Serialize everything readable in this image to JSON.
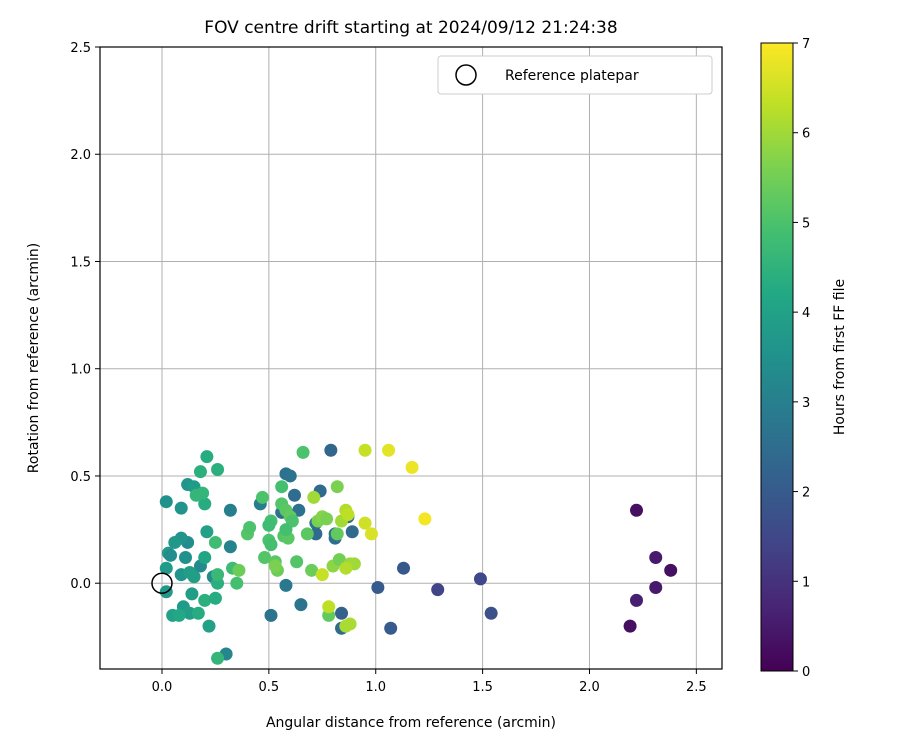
{
  "chart_data": {
    "type": "scatter",
    "title": "FOV centre drift starting at 2024/09/12 21:24:38",
    "xlabel": "Angular distance from reference (arcmin)",
    "ylabel": "Rotation from reference (arcmin)",
    "xlim": [
      -0.29,
      2.62
    ],
    "ylim": [
      -0.4,
      2.5
    ],
    "xticks": [
      "0.0",
      "0.5",
      "1.0",
      "1.5",
      "2.0",
      "2.5"
    ],
    "yticks": [
      "0.0",
      "0.5",
      "1.0",
      "1.5",
      "2.0",
      "2.5"
    ],
    "grid": true,
    "legend": {
      "placement": "top-right",
      "entry": "Reference platepar"
    },
    "reference_point": {
      "x": 0.0,
      "y": 0.0
    },
    "colorbar": {
      "label": "Hours from first FF file",
      "range": [
        0,
        7
      ],
      "ticks": [
        "0",
        "1",
        "2",
        "3",
        "4",
        "5",
        "6",
        "7"
      ],
      "colormap": "viridis"
    },
    "points": [
      [
        2.22,
        0.34,
        0.3
      ],
      [
        2.38,
        0.06,
        0.3
      ],
      [
        2.31,
        0.12,
        0.5
      ],
      [
        2.31,
        -0.02,
        0.5
      ],
      [
        2.22,
        -0.08,
        0.6
      ],
      [
        2.19,
        -0.2,
        0.3
      ],
      [
        1.49,
        0.02,
        1.5
      ],
      [
        1.54,
        -0.14,
        1.7
      ],
      [
        1.29,
        -0.03,
        1.4
      ],
      [
        1.13,
        0.07,
        1.9
      ],
      [
        1.07,
        -0.21,
        2.0
      ],
      [
        1.01,
        -0.02,
        2.0
      ],
      [
        0.79,
        0.62,
        2.3
      ],
      [
        0.84,
        -0.14,
        2.2
      ],
      [
        0.84,
        -0.21,
        2.4
      ],
      [
        0.74,
        0.43,
        2.4
      ],
      [
        0.62,
        0.41,
        2.5
      ],
      [
        0.58,
        0.51,
        2.6
      ],
      [
        0.6,
        0.5,
        2.7
      ],
      [
        0.56,
        0.33,
        2.6
      ],
      [
        0.64,
        0.34,
        2.6
      ],
      [
        0.72,
        0.28,
        2.7
      ],
      [
        0.72,
        0.23,
        2.4
      ],
      [
        0.81,
        0.21,
        2.5
      ],
      [
        0.81,
        0.23,
        2.6
      ],
      [
        0.87,
        0.31,
        2.5
      ],
      [
        0.89,
        0.24,
        2.4
      ],
      [
        0.65,
        -0.1,
        2.7
      ],
      [
        0.51,
        -0.15,
        2.7
      ],
      [
        0.58,
        -0.01,
        2.8
      ],
      [
        0.46,
        0.37,
        2.9
      ],
      [
        0.32,
        0.34,
        3.0
      ],
      [
        0.32,
        0.17,
        3.1
      ],
      [
        0.3,
        -0.33,
        3.2
      ],
      [
        0.24,
        0.03,
        3.3
      ],
      [
        0.18,
        0.08,
        3.3
      ],
      [
        0.12,
        0.19,
        3.4
      ],
      [
        0.09,
        0.21,
        3.6
      ],
      [
        0.06,
        0.19,
        3.7
      ],
      [
        0.03,
        0.14,
        3.8
      ],
      [
        0.02,
        0.07,
        3.8
      ],
      [
        0.04,
        0.13,
        3.4
      ],
      [
        0.11,
        0.12,
        3.5
      ],
      [
        0.09,
        0.04,
        3.6
      ],
      [
        0.13,
        0.05,
        3.9
      ],
      [
        0.15,
        0.03,
        3.9
      ],
      [
        0.02,
        0.38,
        3.5
      ],
      [
        0.09,
        0.35,
        3.6
      ],
      [
        0.12,
        0.46,
        3.6
      ],
      [
        0.15,
        0.45,
        3.8
      ],
      [
        0.02,
        -0.04,
        3.7
      ],
      [
        0.14,
        -0.05,
        3.9
      ],
      [
        0.1,
        -0.11,
        3.8
      ],
      [
        0.13,
        -0.14,
        3.9
      ],
      [
        0.05,
        -0.15,
        4.0
      ],
      [
        0.08,
        -0.15,
        4.2
      ],
      [
        0.22,
        -0.2,
        4.0
      ],
      [
        0.17,
        -0.14,
        4.3
      ],
      [
        0.2,
        -0.08,
        4.4
      ],
      [
        0.25,
        -0.07,
        4.3
      ],
      [
        0.26,
        0.0,
        4.4
      ],
      [
        0.2,
        0.12,
        4.1
      ],
      [
        0.21,
        0.24,
        4.0
      ],
      [
        0.2,
        0.37,
        4.3
      ],
      [
        0.18,
        0.52,
        4.4
      ],
      [
        0.21,
        0.59,
        4.3
      ],
      [
        0.26,
        0.53,
        4.4
      ],
      [
        0.16,
        0.41,
        4.6
      ],
      [
        0.19,
        0.42,
        4.6
      ],
      [
        0.26,
        -0.35,
        4.6
      ],
      [
        0.25,
        0.19,
        4.8
      ],
      [
        0.26,
        0.04,
        4.7
      ],
      [
        0.33,
        0.07,
        4.8
      ],
      [
        0.35,
        0.0,
        4.9
      ],
      [
        0.36,
        0.06,
        5.4
      ],
      [
        0.4,
        0.23,
        5.1
      ],
      [
        0.41,
        0.26,
        5.0
      ],
      [
        0.47,
        0.4,
        5.0
      ],
      [
        0.48,
        0.12,
        5.1
      ],
      [
        0.51,
        0.29,
        4.9
      ],
      [
        0.5,
        0.27,
        4.8
      ],
      [
        0.5,
        0.2,
        5.0
      ],
      [
        0.51,
        0.18,
        4.9
      ],
      [
        0.53,
        0.1,
        5.2
      ],
      [
        0.54,
        0.06,
        5.4
      ],
      [
        0.56,
        0.45,
        4.9
      ],
      [
        0.56,
        0.37,
        5.1
      ],
      [
        0.57,
        0.22,
        5.1
      ],
      [
        0.59,
        0.21,
        5.2
      ],
      [
        0.58,
        0.34,
        5.2
      ],
      [
        0.6,
        0.31,
        5.3
      ],
      [
        0.61,
        0.29,
        5.0
      ],
      [
        0.58,
        0.25,
        4.9
      ],
      [
        0.63,
        0.1,
        5.1
      ],
      [
        0.66,
        0.61,
        5.0
      ],
      [
        0.68,
        0.23,
        5.2
      ],
      [
        0.7,
        0.06,
        5.4
      ],
      [
        0.73,
        0.29,
        5.6
      ],
      [
        0.75,
        0.31,
        5.7
      ],
      [
        0.77,
        0.3,
        5.6
      ],
      [
        0.78,
        -0.15,
        5.3
      ],
      [
        0.8,
        0.08,
        5.8
      ],
      [
        0.82,
        0.45,
        5.6
      ],
      [
        0.82,
        0.23,
        5.3
      ],
      [
        0.83,
        0.11,
        5.5
      ],
      [
        0.71,
        0.4,
        6.0
      ],
      [
        0.84,
        0.29,
        6.0
      ],
      [
        0.86,
        0.34,
        6.2
      ],
      [
        0.87,
        0.32,
        6.3
      ],
      [
        0.88,
        0.09,
        5.9
      ],
      [
        0.9,
        0.09,
        6.0
      ],
      [
        0.86,
        0.07,
        6.2
      ],
      [
        0.86,
        -0.2,
        6.1
      ],
      [
        0.88,
        -0.19,
        6.1
      ],
      [
        0.78,
        -0.11,
        6.3
      ],
      [
        0.53,
        0.08,
        5.6
      ],
      [
        0.75,
        0.04,
        6.4
      ],
      [
        0.95,
        0.62,
        6.4
      ],
      [
        0.95,
        0.28,
        6.5
      ],
      [
        0.98,
        0.23,
        6.6
      ],
      [
        1.06,
        0.62,
        6.7
      ],
      [
        1.17,
        0.54,
        6.8
      ],
      [
        1.23,
        0.3,
        6.9
      ]
    ]
  }
}
